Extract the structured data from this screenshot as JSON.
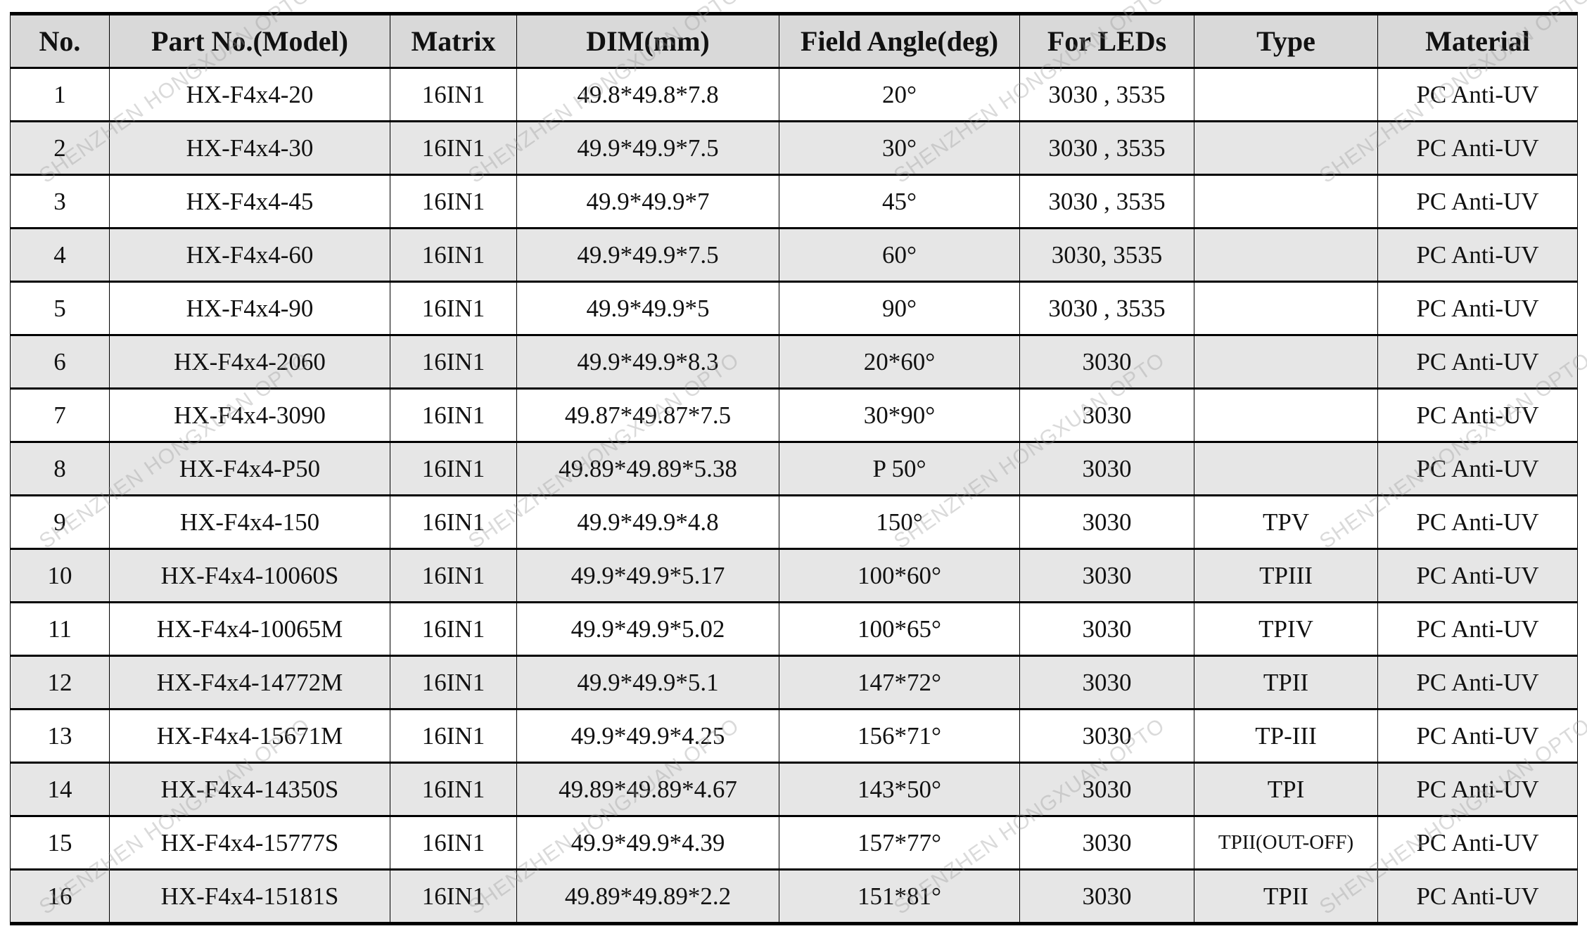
{
  "columns": [
    "No.",
    "Part No.(Model)",
    "Matrix",
    "DIM(mm)",
    "Field Angle(deg)",
    "For LEDs",
    "Type",
    "Material"
  ],
  "rows": [
    [
      "1",
      "HX-F4x4-20",
      "16IN1",
      "49.8*49.8*7.8",
      "20°",
      "3030 , 3535",
      "",
      "PC Anti-UV"
    ],
    [
      "2",
      "HX-F4x4-30",
      "16IN1",
      "49.9*49.9*7.5",
      "30°",
      "3030 , 3535",
      "",
      "PC Anti-UV"
    ],
    [
      "3",
      "HX-F4x4-45",
      "16IN1",
      "49.9*49.9*7",
      "45°",
      "3030 , 3535",
      "",
      "PC Anti-UV"
    ],
    [
      "4",
      "HX-F4x4-60",
      "16IN1",
      "49.9*49.9*7.5",
      "60°",
      "3030, 3535",
      "",
      "PC Anti-UV"
    ],
    [
      "5",
      "HX-F4x4-90",
      "16IN1",
      "49.9*49.9*5",
      "90°",
      "3030 , 3535",
      "",
      "PC Anti-UV"
    ],
    [
      "6",
      "HX-F4x4-2060",
      "16IN1",
      "49.9*49.9*8.3",
      "20*60°",
      "3030",
      "",
      "PC Anti-UV"
    ],
    [
      "7",
      "HX-F4x4-3090",
      "16IN1",
      "49.87*49.87*7.5",
      "30*90°",
      "3030",
      "",
      "PC Anti-UV"
    ],
    [
      "8",
      "HX-F4x4-P50",
      "16IN1",
      "49.89*49.89*5.38",
      "P 50°",
      "3030",
      "",
      "PC Anti-UV"
    ],
    [
      "9",
      "HX-F4x4-150",
      "16IN1",
      "49.9*49.9*4.8",
      "150°",
      "3030",
      "TPV",
      "PC Anti-UV"
    ],
    [
      "10",
      "HX-F4x4-10060S",
      "16IN1",
      "49.9*49.9*5.17",
      "100*60°",
      "3030",
      "TPIII",
      "PC Anti-UV"
    ],
    [
      "11",
      "HX-F4x4-10065M",
      "16IN1",
      "49.9*49.9*5.02",
      "100*65°",
      "3030",
      "TPIV",
      "PC Anti-UV"
    ],
    [
      "12",
      "HX-F4x4-14772M",
      "16IN1",
      "49.9*49.9*5.1",
      "147*72°",
      "3030",
      "TPII",
      "PC Anti-UV"
    ],
    [
      "13",
      "HX-F4x4-15671M",
      "16IN1",
      "49.9*49.9*4.25",
      "156*71°",
      "3030",
      "TP-III",
      "PC Anti-UV"
    ],
    [
      "14",
      "HX-F4x4-14350S",
      "16IN1",
      "49.89*49.89*4.67",
      "143*50°",
      "3030",
      "TPI",
      "PC Anti-UV"
    ],
    [
      "15",
      "HX-F4x4-15777S",
      "16IN1",
      "49.9*49.9*4.39",
      "157*77°",
      "3030",
      "TPII(OUT-OFF)",
      "PC Anti-UV"
    ],
    [
      "16",
      "HX-F4x4-15181S",
      "16IN1",
      "49.89*49.89*2.2",
      "151*81°",
      "3030",
      "TPII",
      "PC Anti-UV"
    ]
  ],
  "watermark": "SHENZHEN HONGXUAN OPTO",
  "colors": {
    "header_bg": "#d9d9d9",
    "alt_row_bg": "#e6e6e6",
    "border": "#000000"
  }
}
